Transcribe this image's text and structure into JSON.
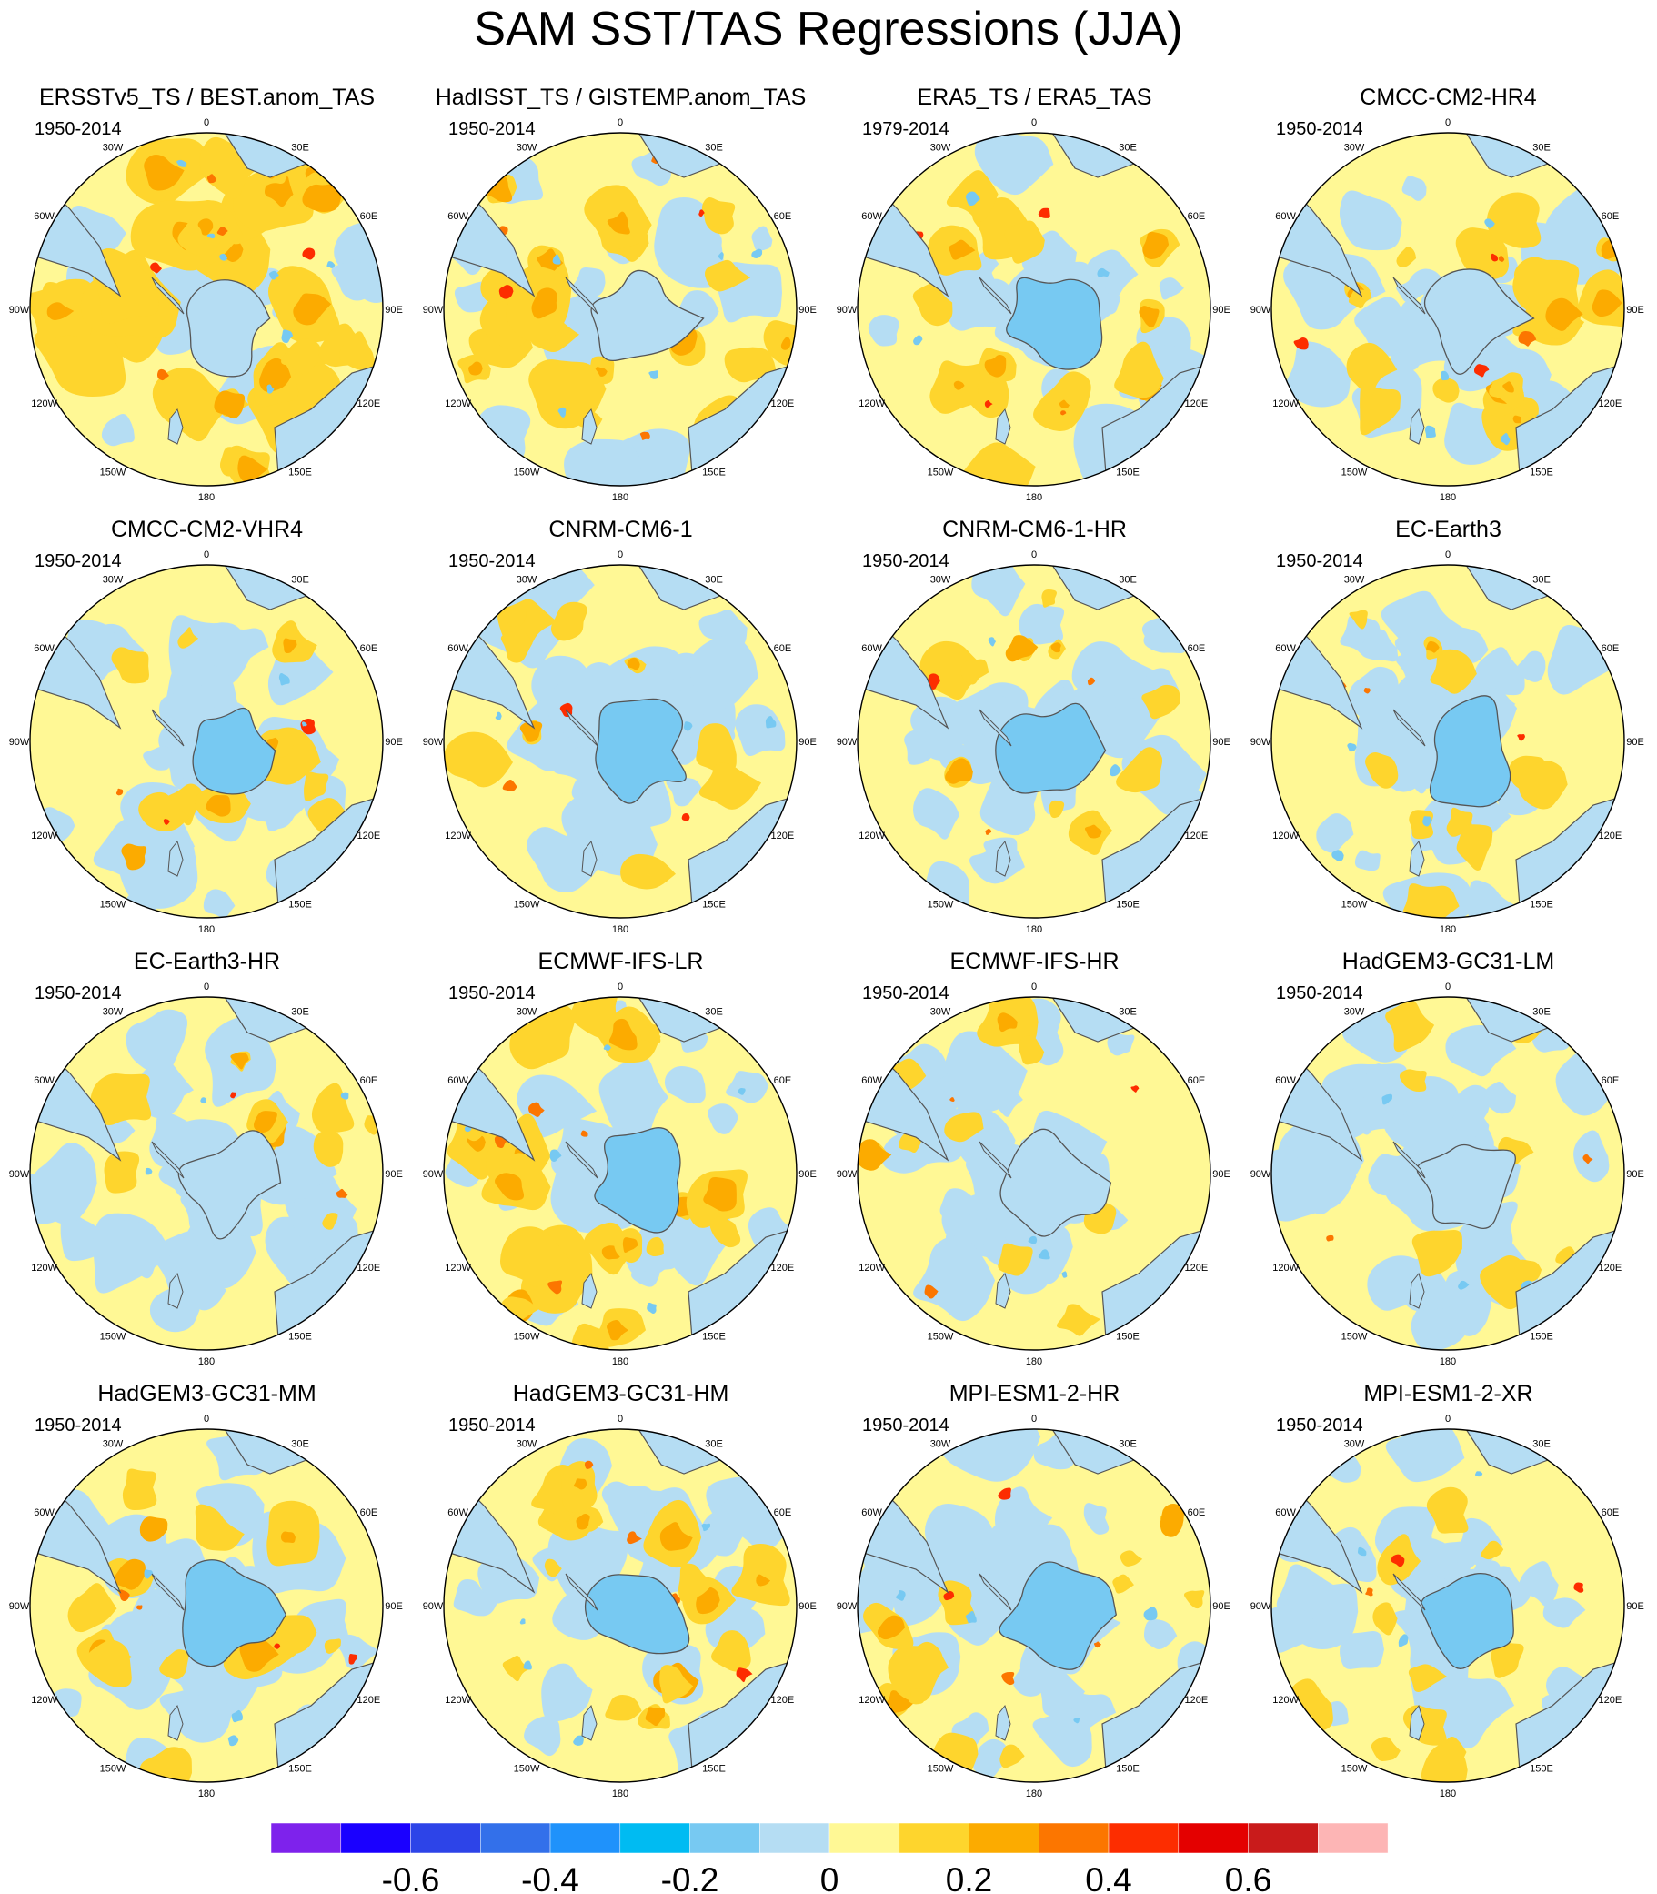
{
  "title": "SAM SST/TAS Regressions (JJA)",
  "lon_labels": [
    "0",
    "30E",
    "60E",
    "90E",
    "120E",
    "150E",
    "180",
    "150W",
    "120W",
    "90W",
    "60W",
    "30W"
  ],
  "panels": [
    {
      "title": "ERSSTv5_TS / BEST.anom_TAS",
      "period": "1950-2014",
      "warm": 0.78,
      "cool": 0.1,
      "ice": 0.55
    },
    {
      "title": "HadISST_TS / GISTEMP.anom_TAS",
      "period": "1950-2014",
      "warm": 0.55,
      "cool": 0.2,
      "ice": 0.55
    },
    {
      "title": "ERA5_TS / ERA5_TAS",
      "period": "1979-2014",
      "warm": 0.35,
      "cool": 0.4,
      "ice": 0.85
    },
    {
      "title": "CMCC-CM2-HR4",
      "period": "1950-2014",
      "warm": 0.45,
      "cool": 0.4,
      "ice": 0.55
    },
    {
      "title": "CMCC-CM2-VHR4",
      "period": "1950-2014",
      "warm": 0.22,
      "cool": 0.45,
      "ice": 0.85
    },
    {
      "title": "CNRM-CM6-1",
      "period": "1950-2014",
      "warm": 0.2,
      "cool": 0.55,
      "ice": 0.85
    },
    {
      "title": "CNRM-CM6-1-HR",
      "period": "1950-2014",
      "warm": 0.2,
      "cool": 0.5,
      "ice": 0.85
    },
    {
      "title": "EC-Earth3",
      "period": "1950-2014",
      "warm": 0.2,
      "cool": 0.55,
      "ice": 0.85
    },
    {
      "title": "EC-Earth3-HR",
      "period": "1950-2014",
      "warm": 0.15,
      "cool": 0.6,
      "ice": 0.55
    },
    {
      "title": "ECMWF-IFS-LR",
      "period": "1950-2014",
      "warm": 0.55,
      "cool": 0.3,
      "ice": 0.85
    },
    {
      "title": "ECMWF-IFS-HR",
      "period": "1950-2014",
      "warm": 0.18,
      "cool": 0.6,
      "ice": 0.55
    },
    {
      "title": "HadGEM3-GC31-LM",
      "period": "1950-2014",
      "warm": 0.12,
      "cool": 0.6,
      "ice": 0.55
    },
    {
      "title": "HadGEM3-GC31-MM",
      "period": "1950-2014",
      "warm": 0.3,
      "cool": 0.45,
      "ice": 0.85
    },
    {
      "title": "HadGEM3-GC31-HM",
      "period": "1950-2014",
      "warm": 0.38,
      "cool": 0.4,
      "ice": 0.85
    },
    {
      "title": "MPI-ESM1-2-HR",
      "period": "1950-2014",
      "warm": 0.25,
      "cool": 0.55,
      "ice": 0.85
    },
    {
      "title": "MPI-ESM1-2-XR",
      "period": "1950-2014",
      "warm": 0.22,
      "cool": 0.55,
      "ice": 0.85
    }
  ],
  "colorbar": {
    "colors": [
      "#7e22ec",
      "#1a00ff",
      "#2d44e8",
      "#3370ea",
      "#1f92fb",
      "#00bbf2",
      "#77c9f2",
      "#b5ddf3",
      "#fff895",
      "#fed52d",
      "#fcab00",
      "#fc7600",
      "#fd2d00",
      "#e40000",
      "#c91b1b",
      "#fdb5b5"
    ],
    "tick_labels": [
      "-0.6",
      "-0.4",
      "-0.2",
      "0",
      "0.2",
      "0.4",
      "0.6"
    ],
    "tick_values": [
      -0.6,
      -0.4,
      -0.2,
      0,
      0.2,
      0.4,
      0.6
    ],
    "levels": [
      -0.7,
      -0.6,
      -0.5,
      -0.4,
      -0.3,
      -0.2,
      -0.1,
      0,
      0.1,
      0.2,
      0.3,
      0.4,
      0.5,
      0.6,
      0.7
    ]
  }
}
